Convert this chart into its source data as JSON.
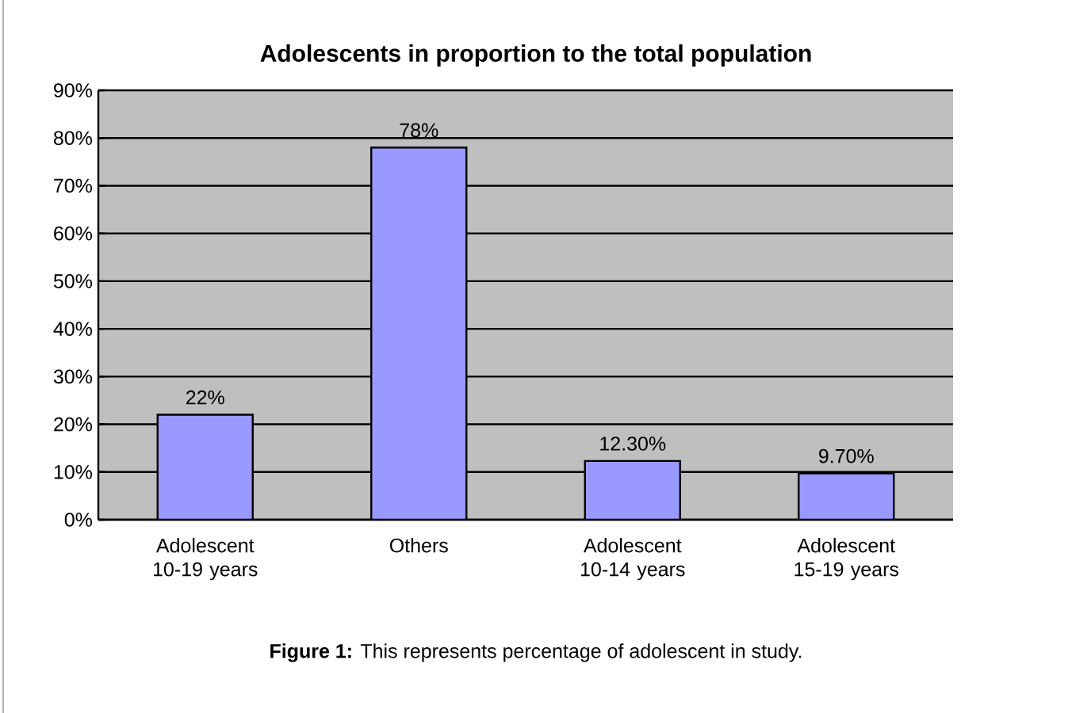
{
  "chart_data": {
    "type": "bar",
    "title": "Adolescents in proportion to the total population",
    "categories": [
      "Adolescent 10-19 years",
      "Others",
      "Adolescent 10-14 years",
      "Adolescent 15-19 years"
    ],
    "values": [
      22,
      78,
      12.3,
      9.7
    ],
    "color": "#9999ff",
    "value_labels": [
      "22%",
      "78%",
      "12.30%",
      "9.70%"
    ],
    "ylim": [
      0,
      90
    ],
    "yticks": [
      {
        "value": 0,
        "label": "0%"
      },
      {
        "value": 10,
        "label": "10%"
      },
      {
        "value": 20,
        "label": "20%"
      },
      {
        "value": 30,
        "label": "30%"
      },
      {
        "value": 40,
        "label": "40%"
      },
      {
        "value": 50,
        "label": "50%"
      },
      {
        "value": 60,
        "label": "60%"
      },
      {
        "value": 70,
        "label": "70%"
      },
      {
        "value": 80,
        "label": "80%"
      },
      {
        "value": 90,
        "label": "90%"
      }
    ],
    "grid": "y",
    "annotations": [
      "**Figure 1:** This represents percentage of adolescent in study."
    ]
  }
}
